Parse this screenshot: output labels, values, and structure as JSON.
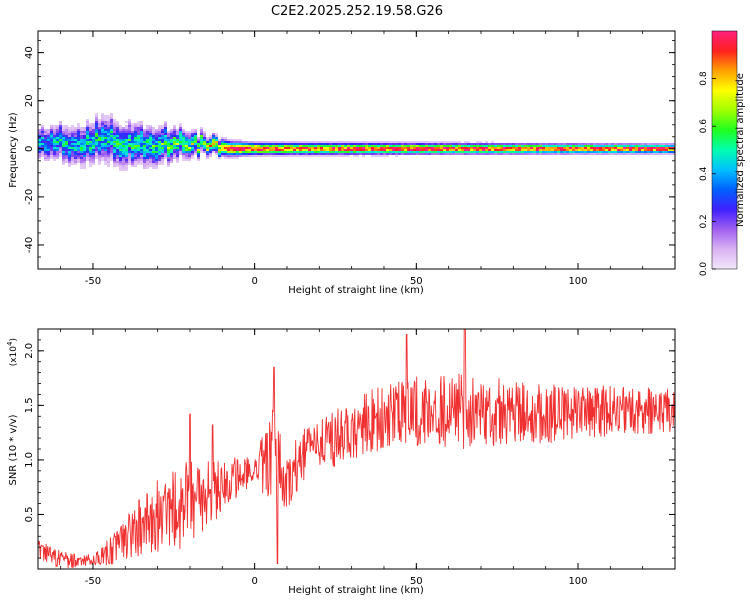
{
  "title": "C2E2.2025.252.19.58.G26",
  "chart_data": [
    {
      "type": "heatmap",
      "xlabel": "Height of straight line (km)",
      "ylabel": "Frequency (Hz)",
      "xlim": [
        -67,
        130
      ],
      "ylim": [
        -50,
        49
      ],
      "xticks": [
        -50,
        0,
        50,
        100
      ],
      "yticks": [
        -40,
        -20,
        0,
        20,
        40
      ],
      "colorbar": {
        "label": "Normalized spectral amplitude",
        "range": [
          0,
          1
        ],
        "ticks": [
          "0.0",
          "0.2",
          "0.4",
          "0.6",
          "0.8"
        ],
        "tick_values": [
          0.0,
          0.2,
          0.4,
          0.6,
          0.8
        ],
        "colormap": [
          "#f2e6fa",
          "#d9b3f2",
          "#a060f0",
          "#4020ff",
          "#0060ff",
          "#00c0ff",
          "#00ffb0",
          "#20ff20",
          "#a0ff00",
          "#ffff00",
          "#ffa000",
          "#ff2020",
          "#ff2080"
        ]
      },
      "band": {
        "center_hz": [
          {
            "x": -65,
            "y": 3
          },
          {
            "x": -55,
            "y": 2
          },
          {
            "x": -47,
            "y": 4
          },
          {
            "x": -40,
            "y": 2
          },
          {
            "x": -33,
            "y": 1
          },
          {
            "x": -25,
            "y": 2
          },
          {
            "x": -15,
            "y": 2
          },
          {
            "x": -8,
            "y": 0
          },
          {
            "x": 0,
            "y": 0
          },
          {
            "x": 10,
            "y": 0
          },
          {
            "x": 50,
            "y": 0
          },
          {
            "x": 100,
            "y": 0
          },
          {
            "x": 130,
            "y": 0
          }
        ],
        "peak_amplitude": [
          {
            "x": -65,
            "y": 0.45
          },
          {
            "x": -50,
            "y": 0.5
          },
          {
            "x": -30,
            "y": 0.55
          },
          {
            "x": -15,
            "y": 0.7
          },
          {
            "x": -8,
            "y": 0.95
          },
          {
            "x": 0,
            "y": 0.98
          },
          {
            "x": 10,
            "y": 0.9
          },
          {
            "x": 40,
            "y": 0.95
          },
          {
            "x": 80,
            "y": 0.97
          },
          {
            "x": 130,
            "y": 0.96
          }
        ],
        "spread_hz": [
          {
            "x": -65,
            "y": 5
          },
          {
            "x": -45,
            "y": 7
          },
          {
            "x": -30,
            "y": 6
          },
          {
            "x": -15,
            "y": 3
          },
          {
            "x": 0,
            "y": 2
          },
          {
            "x": 130,
            "y": 1.5
          }
        ]
      }
    },
    {
      "type": "line",
      "xlabel": "Height of straight line (km)",
      "ylabel": "SNR (10 * v/v)",
      "yscale_label": "(x10",
      "yscale_exp": "4",
      "yscale_close": ")",
      "xlim": [
        -67,
        130
      ],
      "ylim": [
        0,
        2.2
      ],
      "xticks": [
        -50,
        0,
        50,
        100
      ],
      "yticks": [
        "0.5",
        "1.0",
        "1.5",
        "2.0"
      ],
      "ytick_values": [
        0.5,
        1.0,
        1.5,
        2.0
      ],
      "line_color": "#f03030",
      "envelope": {
        "mean": [
          {
            "x": -67,
            "y": 0.2
          },
          {
            "x": -62,
            "y": 0.1
          },
          {
            "x": -55,
            "y": 0.07
          },
          {
            "x": -48,
            "y": 0.1
          },
          {
            "x": -42,
            "y": 0.22
          },
          {
            "x": -35,
            "y": 0.4
          },
          {
            "x": -28,
            "y": 0.5
          },
          {
            "x": -20,
            "y": 0.6
          },
          {
            "x": -10,
            "y": 0.75
          },
          {
            "x": -5,
            "y": 0.85
          },
          {
            "x": 0,
            "y": 0.9
          },
          {
            "x": 5,
            "y": 1.0
          },
          {
            "x": 10,
            "y": 0.8
          },
          {
            "x": 15,
            "y": 1.05
          },
          {
            "x": 25,
            "y": 1.2
          },
          {
            "x": 35,
            "y": 1.35
          },
          {
            "x": 50,
            "y": 1.45
          },
          {
            "x": 70,
            "y": 1.45
          },
          {
            "x": 90,
            "y": 1.42
          },
          {
            "x": 110,
            "y": 1.45
          },
          {
            "x": 130,
            "y": 1.45
          }
        ],
        "amplitude": [
          {
            "x": -67,
            "y": 0.1
          },
          {
            "x": -50,
            "y": 0.05
          },
          {
            "x": -40,
            "y": 0.2
          },
          {
            "x": -30,
            "y": 0.35
          },
          {
            "x": -20,
            "y": 0.4
          },
          {
            "x": -10,
            "y": 0.25
          },
          {
            "x": 0,
            "y": 0.12
          },
          {
            "x": 6,
            "y": 0.55
          },
          {
            "x": 10,
            "y": 0.25
          },
          {
            "x": 20,
            "y": 0.25
          },
          {
            "x": 40,
            "y": 0.3
          },
          {
            "x": 65,
            "y": 0.35
          },
          {
            "x": 100,
            "y": 0.25
          },
          {
            "x": 130,
            "y": 0.2
          }
        ],
        "peaks": [
          {
            "x": 6,
            "y": 1.85
          },
          {
            "x": 7,
            "y": 0.05
          },
          {
            "x": 47,
            "y": 2.15
          },
          {
            "x": 65,
            "y": 2.2
          },
          {
            "x": -20,
            "y": 1.42
          },
          {
            "x": -13,
            "y": 1.32
          }
        ]
      }
    }
  ]
}
